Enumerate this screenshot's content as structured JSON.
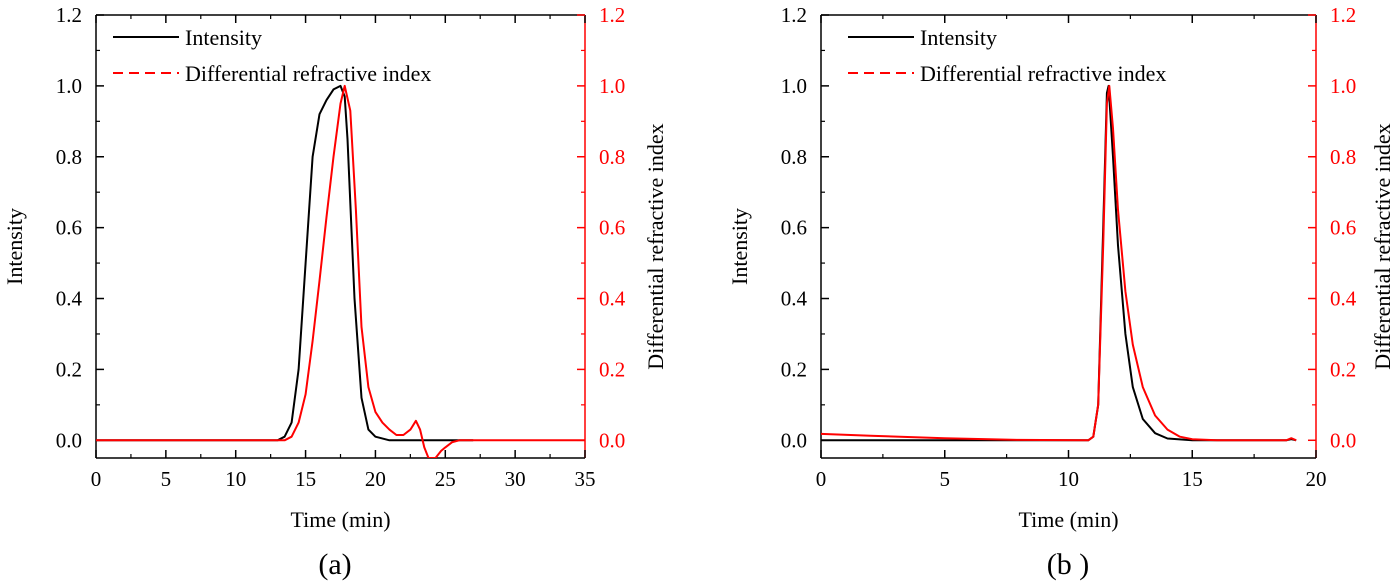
{
  "chart_data": [
    {
      "type": "line",
      "panel_label": "(a)",
      "xlabel": "Time (min)",
      "ylabel_left": "Intensity",
      "ylabel_right": "Differential refractive index",
      "xlim": [
        0,
        35
      ],
      "ylim": [
        -0.05,
        1.2
      ],
      "x_ticks": [
        "0",
        "5",
        "10",
        "15",
        "20",
        "25",
        "30",
        "35"
      ],
      "x_tick_values": [
        0,
        5,
        10,
        15,
        20,
        25,
        30,
        35
      ],
      "y_ticks": [
        "0.0",
        "0.2",
        "0.4",
        "0.6",
        "0.8",
        "1.0",
        "1.2"
      ],
      "y_tick_values": [
        0,
        0.2,
        0.4,
        0.6,
        0.8,
        1.0,
        1.2
      ],
      "legend_position": "top-left",
      "grid": false,
      "series": [
        {
          "name": "Intensity",
          "color": "#000000",
          "axis": "left",
          "legend_style": "solid",
          "points": [
            [
              0,
              0
            ],
            [
              13,
              0
            ],
            [
              13.5,
              0.01
            ],
            [
              14,
              0.05
            ],
            [
              14.5,
              0.2
            ],
            [
              15,
              0.5
            ],
            [
              15.5,
              0.8
            ],
            [
              16,
              0.92
            ],
            [
              16.5,
              0.96
            ],
            [
              17,
              0.99
            ],
            [
              17.5,
              1.0
            ],
            [
              17.8,
              0.97
            ],
            [
              18,
              0.85
            ],
            [
              18.5,
              0.4
            ],
            [
              19,
              0.12
            ],
            [
              19.5,
              0.03
            ],
            [
              20,
              0.01
            ],
            [
              21,
              0
            ],
            [
              27,
              0
            ]
          ]
        },
        {
          "name": "Differential refractive index",
          "color": "#ff0000",
          "axis": "right",
          "legend_style": "dashed",
          "points": [
            [
              0,
              0
            ],
            [
              13.5,
              0
            ],
            [
              14,
              0.01
            ],
            [
              14.5,
              0.05
            ],
            [
              15,
              0.13
            ],
            [
              15.5,
              0.28
            ],
            [
              16,
              0.45
            ],
            [
              16.5,
              0.63
            ],
            [
              17,
              0.8
            ],
            [
              17.5,
              0.95
            ],
            [
              17.8,
              1.0
            ],
            [
              18.2,
              0.93
            ],
            [
              18.6,
              0.65
            ],
            [
              19,
              0.32
            ],
            [
              19.5,
              0.15
            ],
            [
              20,
              0.08
            ],
            [
              20.5,
              0.05
            ],
            [
              21,
              0.03
            ],
            [
              21.5,
              0.015
            ],
            [
              22,
              0.015
            ],
            [
              22.5,
              0.03
            ],
            [
              22.9,
              0.055
            ],
            [
              23.2,
              0.03
            ],
            [
              23.5,
              -0.02
            ],
            [
              23.8,
              -0.05
            ],
            [
              24.3,
              -0.05
            ],
            [
              24.7,
              -0.03
            ],
            [
              25,
              -0.02
            ],
            [
              25.5,
              -0.005
            ],
            [
              26,
              0
            ],
            [
              35,
              0
            ]
          ]
        }
      ]
    },
    {
      "type": "line",
      "panel_label": "(b )",
      "xlabel": "Time (min)",
      "ylabel_left": "Intensity",
      "ylabel_right": "Differential refractive index",
      "xlim": [
        0,
        20
      ],
      "ylim": [
        -0.05,
        1.2
      ],
      "x_ticks": [
        "0",
        "5",
        "10",
        "15",
        "20"
      ],
      "x_tick_values": [
        0,
        5,
        10,
        15,
        20
      ],
      "y_ticks": [
        "0.0",
        "0.2",
        "0.4",
        "0.6",
        "0.8",
        "1.0",
        "1.2"
      ],
      "y_tick_values": [
        0,
        0.2,
        0.4,
        0.6,
        0.8,
        1.0,
        1.2
      ],
      "legend_position": "top-left",
      "grid": false,
      "series": [
        {
          "name": "Intensity",
          "color": "#000000",
          "axis": "left",
          "legend_style": "solid",
          "points": [
            [
              0,
              0
            ],
            [
              10.8,
              0
            ],
            [
              11,
              0.01
            ],
            [
              11.2,
              0.1
            ],
            [
              11.4,
              0.6
            ],
            [
              11.55,
              0.98
            ],
            [
              11.62,
              1.0
            ],
            [
              11.8,
              0.8
            ],
            [
              12,
              0.55
            ],
            [
              12.3,
              0.3
            ],
            [
              12.6,
              0.15
            ],
            [
              13,
              0.06
            ],
            [
              13.5,
              0.02
            ],
            [
              14,
              0.005
            ],
            [
              15,
              0
            ],
            [
              18.8,
              0
            ],
            [
              19,
              0.003
            ],
            [
              19.2,
              0
            ]
          ]
        },
        {
          "name": "Differential refractive index",
          "color": "#ff0000",
          "axis": "right",
          "legend_style": "dashed",
          "points": [
            [
              0,
              0.018
            ],
            [
              2,
              0.013
            ],
            [
              5,
              0.006
            ],
            [
              8,
              0.001
            ],
            [
              10.8,
              0
            ],
            [
              11,
              0.01
            ],
            [
              11.2,
              0.1
            ],
            [
              11.4,
              0.55
            ],
            [
              11.55,
              0.95
            ],
            [
              11.65,
              1.0
            ],
            [
              11.8,
              0.88
            ],
            [
              12,
              0.65
            ],
            [
              12.3,
              0.42
            ],
            [
              12.6,
              0.27
            ],
            [
              13,
              0.15
            ],
            [
              13.5,
              0.07
            ],
            [
              14,
              0.03
            ],
            [
              14.5,
              0.01
            ],
            [
              15,
              0.003
            ],
            [
              16,
              0
            ],
            [
              18.8,
              0
            ],
            [
              19,
              0.006
            ],
            [
              19.2,
              0
            ]
          ]
        }
      ]
    }
  ]
}
